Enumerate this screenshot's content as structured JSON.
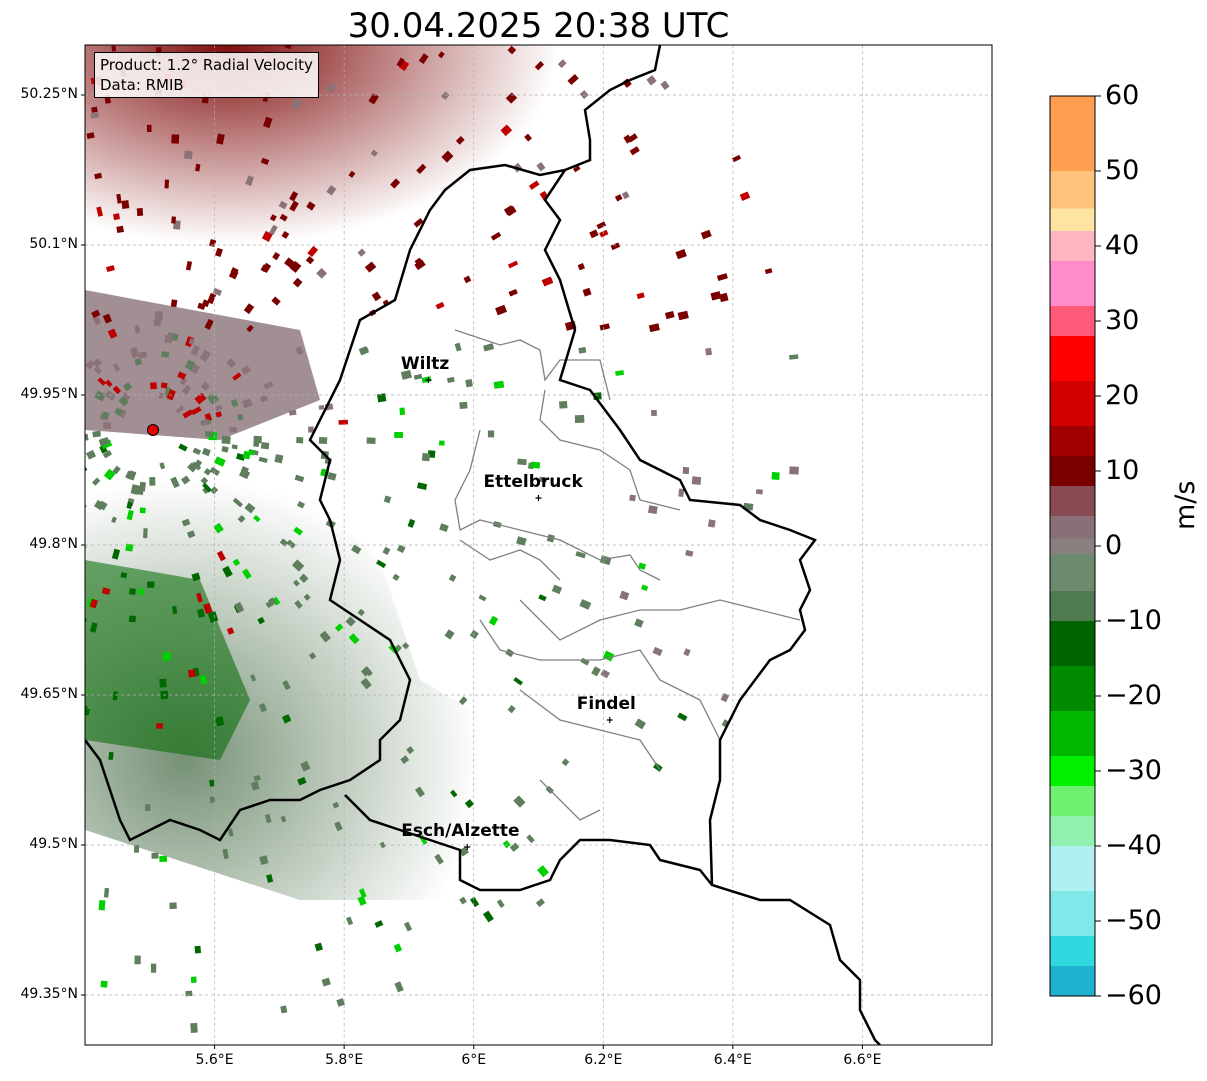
{
  "title": "30.04.2025 20:38 UTC",
  "info": {
    "product": "Product: 1.2° Radial Velocity",
    "data_source": "Data: RMIB"
  },
  "cities": [
    {
      "name": "Wiltz",
      "lon": 5.93,
      "lat": 49.965
    },
    {
      "name": "Ettelbruck",
      "lon": 6.1,
      "lat": 49.847
    },
    {
      "name": "Findel",
      "lon": 6.21,
      "lat": 49.625
    },
    {
      "name": "Esch/Alzette",
      "lon": 5.99,
      "lat": 49.498
    }
  ],
  "radar_site": {
    "lon": 5.505,
    "lat": 49.915
  },
  "axes": {
    "lat_ticks": [
      "50.25°N",
      "50.1°N",
      "49.95°N",
      "49.8°N",
      "49.65°N",
      "49.5°N",
      "49.35°N"
    ],
    "lon_ticks": [
      "5.6°E",
      "5.8°E",
      "6°E",
      "6.2°E",
      "6.4°E",
      "6.6°E"
    ],
    "lon_range": [
      5.4,
      6.8
    ],
    "lat_range": [
      49.3,
      50.3
    ]
  },
  "colorbar": {
    "unit": "m/s",
    "ticks": [
      "60",
      "50",
      "40",
      "30",
      "20",
      "10",
      "0",
      "−10",
      "−20",
      "−30",
      "−40",
      "−50",
      "−60"
    ],
    "range": [
      -60,
      60
    ]
  },
  "colors": {
    "receding_strong": "#7a0000",
    "receding": "#c00000",
    "near_zero": "#8a7378",
    "approaching": "#5e7e5e",
    "approaching_strong": "#006800",
    "approaching_bright": "#00d000",
    "border": "#000000",
    "canton": "#808080"
  }
}
